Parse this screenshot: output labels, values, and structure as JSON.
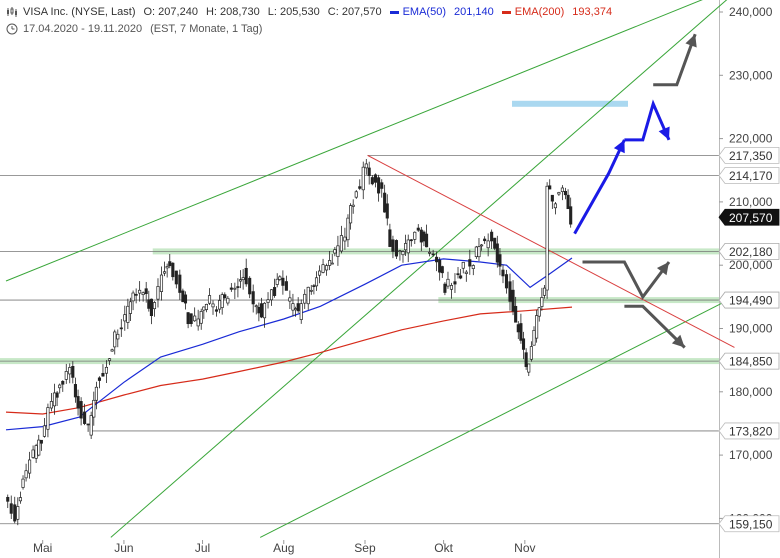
{
  "header": {
    "instrument": "VISA Inc. (NYSE, Last)",
    "open": "O: 207,240",
    "high": "H: 208,730",
    "low": "L: 205,530",
    "close": "C: 207,570",
    "ema50_label": "EMA(50)",
    "ema50_value": "201,140",
    "ema200_label": "EMA(200)",
    "ema200_value": "193,374",
    "range": "17.04.2020 - 19.11.2020",
    "meta": "(EST, 7 Monate, 1 Tag)"
  },
  "colors": {
    "ema50": "#1a2bd6",
    "ema200": "#d62b1a",
    "channel": "#3aa63a",
    "support_zone": "#b9e2b9",
    "resistance_zone": "#aad8f0",
    "arrow_blue": "#1a1ae6",
    "arrow_gray": "#555555",
    "trendline": "#d94040"
  },
  "chart_data": {
    "type": "candlestick",
    "title": "VISA Inc. (NYSE, Last)",
    "ylim": [
      157,
      244
    ],
    "scale": "linear",
    "y_ticks": [
      "240,000",
      "230,000",
      "220,000",
      "210,000",
      "200,000",
      "190,000",
      "180,000",
      "170,000",
      "160,000"
    ],
    "x_ticks": [
      "Mai",
      "Jun",
      "Jul",
      "Aug",
      "Sep",
      "Okt",
      "Nov"
    ],
    "horizontal_levels": [
      {
        "value": 217.35,
        "label": "217,350",
        "style": "gray"
      },
      {
        "value": 214.17,
        "label": "214,170",
        "style": "gray"
      },
      {
        "value": 207.57,
        "label": "207,570",
        "style": "last-price"
      },
      {
        "value": 202.18,
        "label": "202,180",
        "style": "green-zone"
      },
      {
        "value": 194.49,
        "label": "194,490",
        "style": "green-zone"
      },
      {
        "value": 184.85,
        "label": "184,850",
        "style": "green-zone"
      },
      {
        "value": 173.82,
        "label": "173,820",
        "style": "gray"
      },
      {
        "value": 159.15,
        "label": "159,150",
        "style": "gray"
      }
    ],
    "price_path": [
      [
        "04-17",
        163.0
      ],
      [
        "04-21",
        160.5
      ],
      [
        "04-24",
        166.0
      ],
      [
        "04-28",
        170.0
      ],
      [
        "05-01",
        172.5
      ],
      [
        "05-05",
        178.5
      ],
      [
        "05-08",
        181.0
      ],
      [
        "05-12",
        183.5
      ],
      [
        "05-15",
        178.0
      ],
      [
        "05-19",
        174.0
      ],
      [
        "05-22",
        181.5
      ],
      [
        "05-26",
        184.0
      ],
      [
        "05-29",
        188.5
      ],
      [
        "06-02",
        192.0
      ],
      [
        "06-05",
        195.0
      ],
      [
        "06-09",
        196.5
      ],
      [
        "06-12",
        193.0
      ],
      [
        "06-16",
        198.5
      ],
      [
        "06-19",
        200.5
      ],
      [
        "06-23",
        196.5
      ],
      [
        "06-26",
        191.5
      ],
      [
        "06-30",
        191.0
      ],
      [
        "07-03",
        194.5
      ],
      [
        "07-07",
        193.5
      ],
      [
        "07-10",
        195.0
      ],
      [
        "07-14",
        196.0
      ],
      [
        "07-17",
        198.5
      ],
      [
        "07-21",
        194.5
      ],
      [
        "07-24",
        192.5
      ],
      [
        "07-28",
        195.5
      ],
      [
        "07-31",
        197.5
      ],
      [
        "08-04",
        194.0
      ],
      [
        "08-07",
        192.5
      ],
      [
        "08-11",
        196.0
      ],
      [
        "08-14",
        198.0
      ],
      [
        "08-18",
        199.5
      ],
      [
        "08-21",
        201.5
      ],
      [
        "08-25",
        205.0
      ],
      [
        "08-28",
        210.0
      ],
      [
        "09-01",
        214.5
      ],
      [
        "09-02",
        215.5
      ],
      [
        "09-08",
        211.5
      ],
      [
        "09-11",
        204.0
      ],
      [
        "09-15",
        201.5
      ],
      [
        "09-18",
        203.5
      ],
      [
        "09-22",
        205.5
      ],
      [
        "09-25",
        203.0
      ],
      [
        "09-29",
        200.5
      ],
      [
        "10-02",
        196.5
      ],
      [
        "10-06",
        198.0
      ],
      [
        "10-09",
        199.5
      ],
      [
        "10-13",
        201.0
      ],
      [
        "10-16",
        203.5
      ],
      [
        "10-20",
        204.5
      ],
      [
        "10-23",
        199.5
      ],
      [
        "10-27",
        195.0
      ],
      [
        "10-30",
        190.0
      ],
      [
        "11-02",
        183.5
      ],
      [
        "11-04",
        187.0
      ],
      [
        "11-06",
        192.0
      ],
      [
        "11-09",
        196.5
      ],
      [
        "11-10",
        213.5
      ],
      [
        "11-12",
        209.5
      ],
      [
        "11-16",
        212.0
      ],
      [
        "11-19",
        207.57
      ]
    ],
    "ema50": [
      [
        "04-17",
        174.0
      ],
      [
        "05-01",
        174.5
      ],
      [
        "05-15",
        176.0
      ],
      [
        "06-01",
        181.5
      ],
      [
        "06-15",
        185.5
      ],
      [
        "07-01",
        187.5
      ],
      [
        "07-15",
        189.5
      ],
      [
        "08-01",
        191.5
      ],
      [
        "08-15",
        193.5
      ],
      [
        "09-01",
        197.0
      ],
      [
        "09-15",
        200.0
      ],
      [
        "10-01",
        201.0
      ],
      [
        "10-15",
        200.5
      ],
      [
        "10-25",
        200.0
      ],
      [
        "11-03",
        196.5
      ],
      [
        "11-10",
        198.5
      ],
      [
        "11-19",
        201.14
      ]
    ],
    "ema200": [
      [
        "04-17",
        176.8
      ],
      [
        "05-01",
        176.5
      ],
      [
        "05-15",
        177.5
      ],
      [
        "06-01",
        179.5
      ],
      [
        "06-15",
        181.0
      ],
      [
        "07-01",
        182.0
      ],
      [
        "07-15",
        183.2
      ],
      [
        "08-01",
        184.7
      ],
      [
        "08-15",
        186.2
      ],
      [
        "09-01",
        188.2
      ],
      [
        "09-15",
        189.8
      ],
      [
        "10-01",
        191.2
      ],
      [
        "10-15",
        192.3
      ],
      [
        "11-01",
        192.8
      ],
      [
        "11-19",
        193.374
      ]
    ],
    "annotations": {
      "blue_path": [
        [
          "11-20",
          205.0
        ],
        [
          "12-03",
          214.5
        ],
        [
          "12-09",
          219.8
        ],
        [
          "12-16",
          219.8
        ],
        [
          "12-20",
          225.5
        ],
        [
          "12-26",
          219.8
        ]
      ],
      "resistance_zone": [
        225.5,
        225.5
      ],
      "gray_up_path": [
        [
          "12-20",
          228.5
        ],
        [
          "12-29",
          228.5
        ],
        [
          "01-05",
          236.5
        ]
      ],
      "gray_mid_path": [
        [
          "11-23",
          200.5
        ],
        [
          "12-09",
          200.5
        ],
        [
          "12-16",
          195.0
        ],
        [
          "12-26",
          200.5
        ]
      ],
      "gray_down_path": [
        [
          "12-09",
          193.5
        ],
        [
          "12-16",
          193.5
        ],
        [
          "01-01",
          187.0
        ]
      ]
    },
    "channel_lines": [
      {
        "from": [
          "04-17",
          197.5
        ],
        "to": [
          "01-20",
          244.0
        ]
      },
      {
        "from": [
          "05-27",
          157.0
        ],
        "to": [
          "01-20",
          243.0
        ]
      },
      {
        "from": [
          "07-23",
          157.0
        ],
        "to": [
          "01-20",
          195.0
        ]
      }
    ],
    "trendline": {
      "from": [
        "09-02",
        217.35
      ],
      "to": [
        "01-20",
        187.0
      ]
    }
  }
}
